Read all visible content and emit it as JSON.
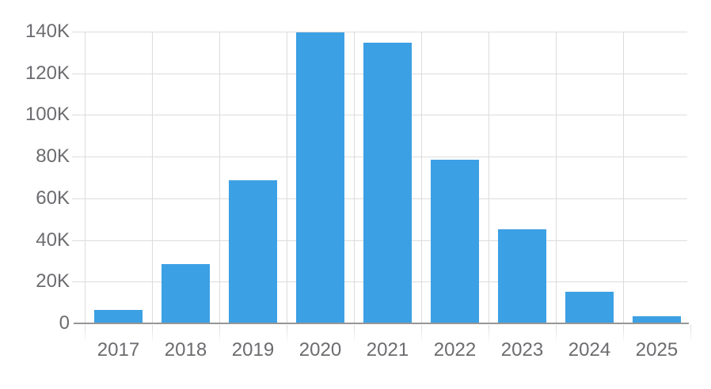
{
  "chart_data": {
    "type": "bar",
    "title": "",
    "xlabel": "",
    "ylabel": "",
    "categories": [
      "2017",
      "2018",
      "2019",
      "2020",
      "2021",
      "2022",
      "2023",
      "2024",
      "2025"
    ],
    "values": [
      6300,
      28300,
      68500,
      139500,
      134500,
      78500,
      45000,
      15000,
      3300
    ],
    "ylim": [
      0,
      140000
    ],
    "y_ticks": [
      0,
      20000,
      40000,
      60000,
      80000,
      100000,
      120000,
      140000
    ],
    "y_tick_labels": [
      "0",
      "20K",
      "40K",
      "60K",
      "80K",
      "100K",
      "120K",
      "140K"
    ],
    "grid": true,
    "legend": false,
    "bar_color": "#3CA0E4",
    "grid_color": "#DCDCDC",
    "tick_color": "#D9D9D9",
    "axis_color": "#969696",
    "label_color": "#6C6C70",
    "background_color": "#FFFFFF"
  }
}
